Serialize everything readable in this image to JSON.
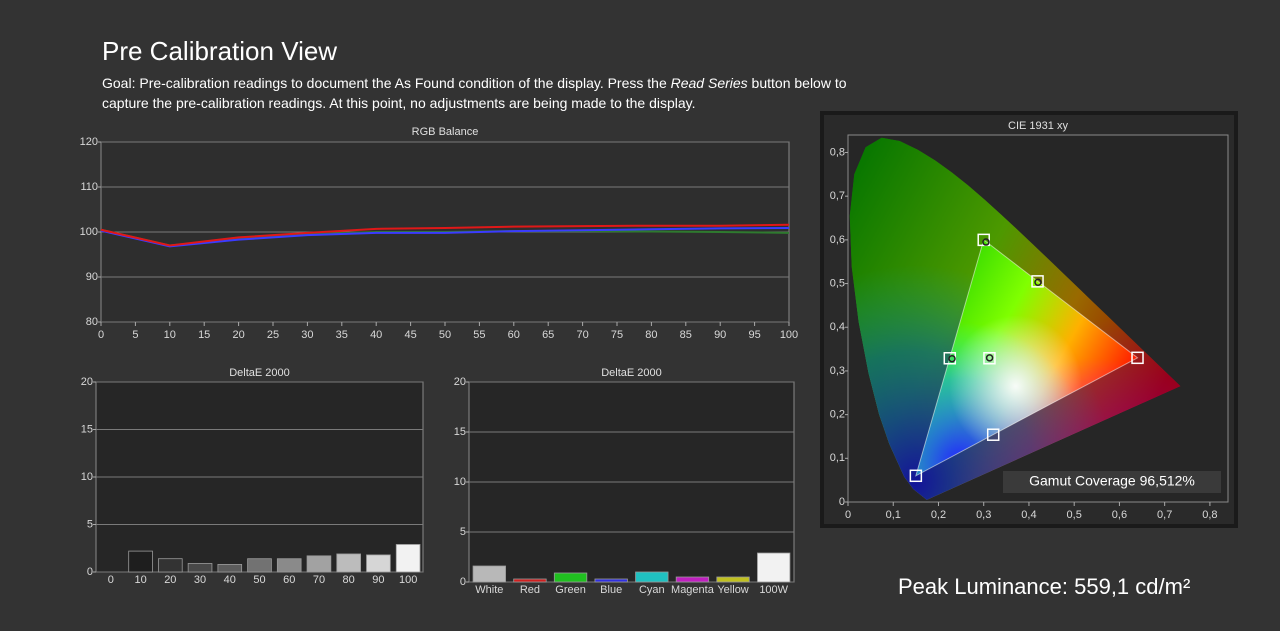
{
  "header": {
    "title": "Pre Calibration View",
    "goal_start": "Goal: Pre-calibration readings to document the As Found condition of the display. Press the ",
    "goal_emphasis": "Read Series",
    "goal_end": " button below to",
    "goal_line2": "capture the pre-calibration readings. At this point, no adjustments are being made to the display."
  },
  "chart_data": [
    {
      "type": "line",
      "title": "RGB Balance",
      "x": [
        0,
        10,
        20,
        30,
        40,
        50,
        60,
        70,
        80,
        90,
        100
      ],
      "series": [
        {
          "color": "#2f7a2f",
          "values": [
            100.5,
            97,
            98.5,
            99.5,
            100,
            100,
            100.2,
            100.2,
            100.1,
            100,
            99.8
          ]
        },
        {
          "color": "#3b3bff",
          "values": [
            100.3,
            96.8,
            98.3,
            99.3,
            99.8,
            99.8,
            100.2,
            100.4,
            100.6,
            100.8,
            100.9
          ]
        },
        {
          "color": "#e01818",
          "values": [
            100.5,
            97,
            98.8,
            99.8,
            100.7,
            100.9,
            101.2,
            101.3,
            101.4,
            101.4,
            101.6
          ]
        }
      ],
      "xlim": [
        0,
        100
      ],
      "xticks": [
        0,
        5,
        10,
        15,
        20,
        25,
        30,
        35,
        40,
        45,
        50,
        55,
        60,
        65,
        70,
        75,
        80,
        85,
        90,
        95,
        100
      ],
      "ylim": [
        80,
        120
      ],
      "yticks": [
        80,
        90,
        100,
        110,
        120
      ],
      "grid": true
    },
    {
      "type": "bar",
      "title": "DeltaE 2000",
      "categories": [
        "0",
        "10",
        "20",
        "30",
        "40",
        "50",
        "60",
        "70",
        "80",
        "90",
        "100"
      ],
      "values": [
        null,
        2.2,
        1.4,
        0.9,
        0.8,
        1.4,
        1.4,
        1.7,
        1.9,
        1.8,
        2.9
      ],
      "colors": [
        null,
        "#1e1e1e",
        "#333333",
        "#484848",
        "#5c5c5c",
        "#727272",
        "#8a8a8a",
        "#a2a2a2",
        "#bcbcbc",
        "#d6d6d6",
        "#f2f2f2"
      ],
      "ylim": [
        0,
        20
      ],
      "yticks": [
        0,
        5,
        10,
        15,
        20
      ],
      "grid": true
    },
    {
      "type": "bar",
      "title": "DeltaE 2000",
      "categories": [
        "White",
        "Red",
        "Green",
        "Blue",
        "Cyan",
        "Magenta",
        "Yellow",
        "100W"
      ],
      "values": [
        1.6,
        0.3,
        0.9,
        0.3,
        1.0,
        0.5,
        0.5,
        2.9
      ],
      "colors": [
        "#b8b8b8",
        "#d02020",
        "#20c020",
        "#3030e0",
        "#20c0c0",
        "#c020c0",
        "#c0c020",
        "#f2f2f2"
      ],
      "ylim": [
        0,
        20
      ],
      "yticks": [
        0,
        5,
        10,
        15,
        20
      ],
      "grid": true
    },
    {
      "type": "scatter",
      "title": "CIE 1931 xy",
      "series": [
        {
          "marker": "square",
          "color": "#ffffff",
          "x": [
            0.64,
            0.3,
            0.15,
            0.3127,
            0.225,
            0.321,
            0.419
          ],
          "values": [
            0.33,
            0.6,
            0.06,
            0.329,
            0.329,
            0.154,
            0.505
          ]
        },
        {
          "marker": "circle",
          "color": "#222222",
          "x": [
            0.305,
            0.42,
            0.23,
            0.313
          ],
          "values": [
            0.595,
            0.503,
            0.328,
            0.33
          ]
        }
      ],
      "xlim": [
        0,
        0.84
      ],
      "xticks": [
        0,
        {
          "value": 0.1,
          "label": "0,1"
        },
        {
          "value": 0.2,
          "label": "0,2"
        },
        {
          "value": 0.3,
          "label": "0,3"
        },
        {
          "value": 0.4,
          "label": "0,4"
        },
        {
          "value": 0.5,
          "label": "0,5"
        },
        {
          "value": 0.6,
          "label": "0,6"
        },
        {
          "value": 0.7,
          "label": "0,7"
        },
        {
          "value": 0.8,
          "label": "0,8"
        }
      ],
      "ylim": [
        0,
        0.84
      ],
      "yticks": [
        0,
        {
          "value": 0.1,
          "label": "0,1"
        },
        {
          "value": 0.2,
          "label": "0,2"
        },
        {
          "value": 0.3,
          "label": "0,3"
        },
        {
          "value": 0.4,
          "label": "0,4"
        },
        {
          "value": 0.5,
          "label": "0,5"
        },
        {
          "value": 0.6,
          "label": "0,6"
        },
        {
          "value": 0.7,
          "label": "0,7"
        },
        {
          "value": 0.8,
          "label": "0,8"
        }
      ],
      "annotation": "Gamut Coverage 96,512%"
    }
  ],
  "footer": {
    "peak_luminance": "Peak Luminance: 559,1 cd/m²"
  }
}
